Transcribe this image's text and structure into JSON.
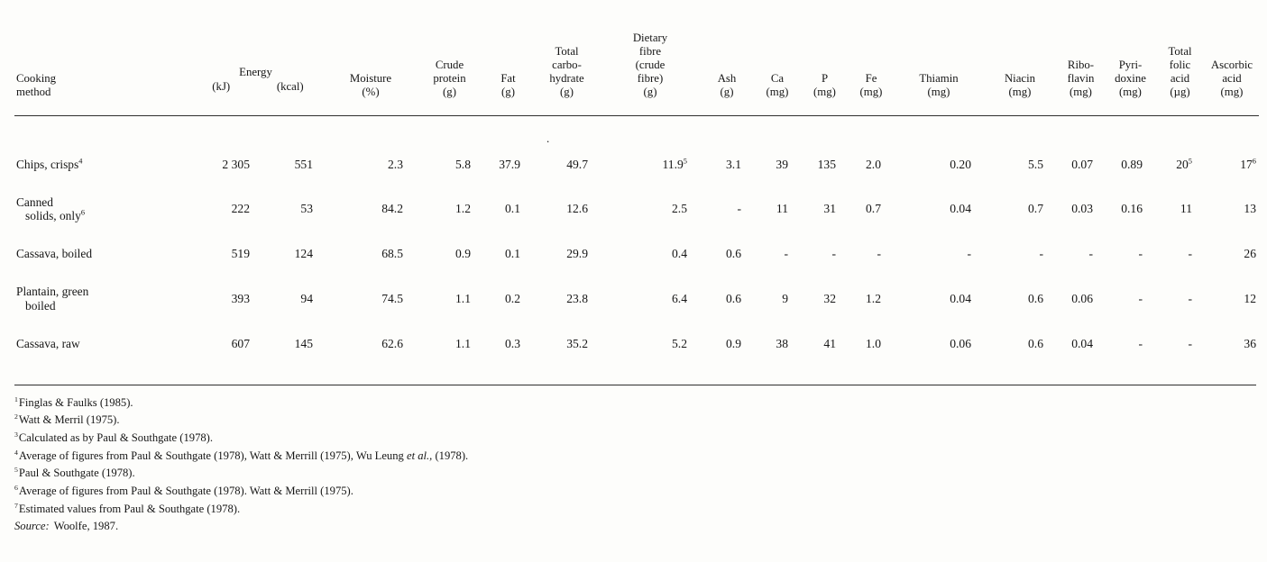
{
  "colors": {
    "paper": "#fdfdfb",
    "ink": "#161616"
  },
  "stray_mark": ".",
  "table": {
    "columns": [
      {
        "key": "cooking-method",
        "align": "left",
        "lines": [
          "Cooking",
          "method"
        ]
      },
      {
        "key": "energy-kj",
        "group": "Energy",
        "lines": [
          "(kJ)"
        ]
      },
      {
        "key": "energy-kcal",
        "group": "Energy",
        "lines": [
          "(kcal)"
        ]
      },
      {
        "key": "moisture",
        "lines": [
          "Moisture",
          "(%)"
        ]
      },
      {
        "key": "crude-protein",
        "lines": [
          "Crude",
          "protein",
          "(g)"
        ]
      },
      {
        "key": "fat",
        "lines": [
          "Fat",
          "(g)"
        ]
      },
      {
        "key": "total-carbohydrate",
        "lines": [
          "Total",
          "carbo-",
          "hydrate",
          "(g)"
        ]
      },
      {
        "key": "dietary-fibre",
        "lines": [
          "Dietary",
          "fibre",
          "(crude",
          "fibre)",
          "(g)"
        ]
      },
      {
        "key": "ash",
        "lines": [
          "Ash",
          "(g)"
        ]
      },
      {
        "key": "calcium",
        "lines": [
          "Ca",
          "(mg)"
        ]
      },
      {
        "key": "phosphorus",
        "lines": [
          "P",
          "(mg)"
        ]
      },
      {
        "key": "iron",
        "lines": [
          "Fe",
          "(mg)"
        ]
      },
      {
        "key": "thiamin",
        "lines": [
          "Thiamin",
          "(mg)"
        ]
      },
      {
        "key": "niacin",
        "lines": [
          "Niacin",
          "(mg)"
        ]
      },
      {
        "key": "riboflavin",
        "lines": [
          "Ribo-",
          "flavin",
          "(mg)"
        ]
      },
      {
        "key": "pyridoxine",
        "lines": [
          "Pyri-",
          "doxine",
          "(mg)"
        ]
      },
      {
        "key": "total-folic-acid",
        "lines": [
          "Total",
          "folic",
          "acid",
          "(µg)"
        ]
      },
      {
        "key": "ascorbic-acid",
        "lines": [
          "Ascorbic",
          "acid",
          "(mg)"
        ]
      }
    ],
    "rows": [
      {
        "method": "Chips, crisps^4",
        "values": [
          "2 305",
          "551",
          "2.3",
          "5.8",
          "37.9",
          "49.7",
          "11.9^5",
          "3.1",
          "39",
          "135",
          "2.0",
          "0.20",
          "5.5",
          "0.07",
          "0.89",
          "20^5",
          "17^6"
        ]
      },
      {
        "method": "Canned\n   solids, only^6",
        "values": [
          "222",
          "53",
          "84.2",
          "1.2",
          "0.1",
          "12.6",
          "2.5",
          "-",
          "11",
          "31",
          "0.7",
          "0.04",
          "0.7",
          "0.03",
          "0.16",
          "11",
          "13"
        ]
      },
      {
        "method": "Cassava, boiled",
        "values": [
          "519",
          "124",
          "68.5",
          "0.9",
          "0.1",
          "29.9",
          "0.4",
          "0.6",
          "-",
          "-",
          "-",
          "-",
          "-",
          "-",
          "-",
          "-",
          "26"
        ]
      },
      {
        "method": "Plantain, green\n   boiled",
        "values": [
          "393",
          "94",
          "74.5",
          "1.1",
          "0.2",
          "23.8",
          "6.4",
          "0.6",
          "9",
          "32",
          "1.2",
          "0.04",
          "0.6",
          "0.06",
          "-",
          "-",
          "12"
        ]
      },
      {
        "method": "Cassava, raw",
        "values": [
          "607",
          "145",
          "62.6",
          "1.1",
          "0.3",
          "35.2",
          "5.2",
          "0.9",
          "38",
          "41",
          "1.0",
          "0.06",
          "0.6",
          "0.04",
          "-",
          "-",
          "36"
        ]
      }
    ]
  },
  "footnotes": [
    {
      "marker": "1",
      "text": "Finglas & Faulks (1985)."
    },
    {
      "marker": "2",
      "text": "Watt & Merril (1975)."
    },
    {
      "marker": "3",
      "text": "Calculated as by Paul & Southgate (1978)."
    },
    {
      "marker": "4",
      "text": "Average of figures from Paul & Southgate (1978), Watt & Merrill (1975), Wu Leung *et al.,* (1978)."
    },
    {
      "marker": "5",
      "text": "Paul & Southgate (1978)."
    },
    {
      "marker": "6",
      "text": "Average of figures from Paul & Southgate (1978). Watt & Merrill (1975)."
    },
    {
      "marker": "7",
      "text": "Estimated values from Paul & Southgate (1978)."
    }
  ],
  "source_line": {
    "label": "Source:",
    "text": "Woolfe, 1987."
  }
}
